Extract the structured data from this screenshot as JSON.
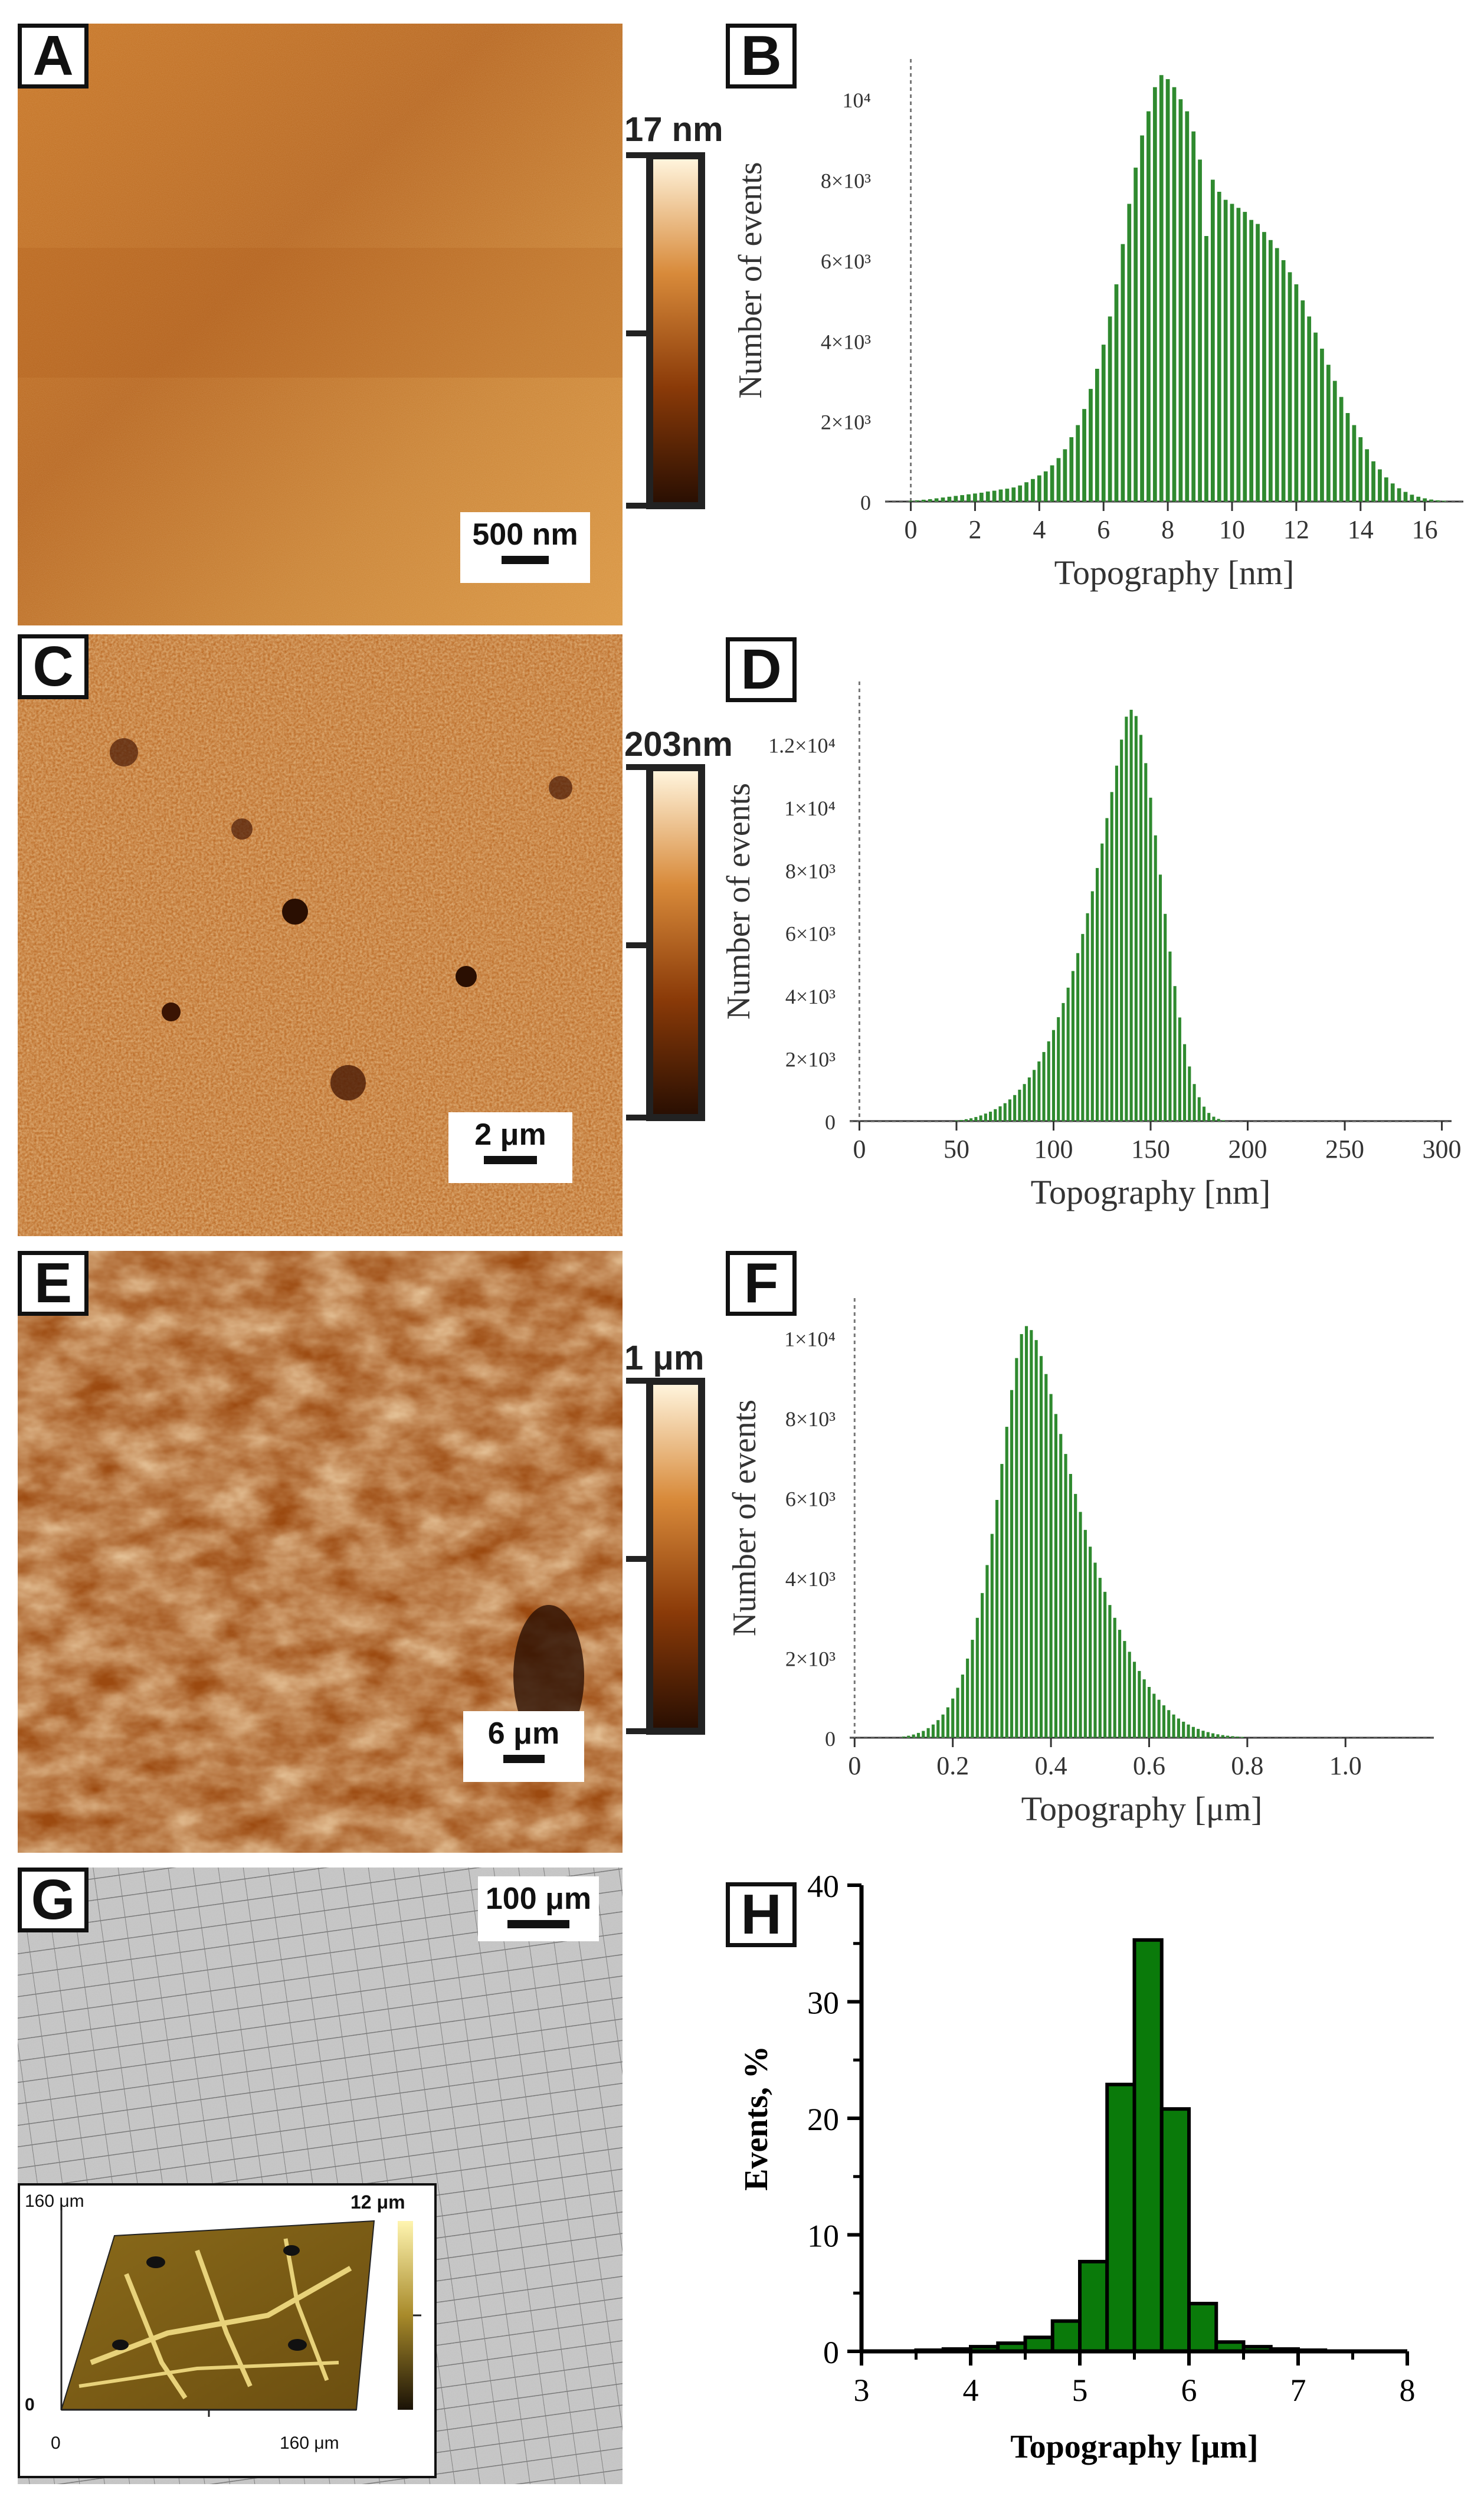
{
  "panels": {
    "A": {
      "letter": "A",
      "colorbar_max": "17 nm",
      "scale_bar": "500 nm"
    },
    "B": {
      "letter": "B"
    },
    "C": {
      "letter": "C",
      "colorbar_max": "203nm",
      "scale_bar": "2 μm"
    },
    "D": {
      "letter": "D"
    },
    "E": {
      "letter": "E",
      "colorbar_max": "1 μm",
      "scale_bar": "6 μm"
    },
    "F": {
      "letter": "F"
    },
    "G": {
      "letter": "G",
      "scale_bar": "100 μm",
      "inset": {
        "y_max": "160 μm",
        "y_min": "0",
        "x_min": "0",
        "x_max": "160 μm",
        "z_max": "12 μm"
      }
    },
    "H": {
      "letter": "H"
    }
  },
  "chart_data": [
    {
      "id": "B",
      "type": "bar",
      "xlabel": "Topography [nm]",
      "ylabel": "Number of events",
      "xlim": [
        -0.8,
        17.2
      ],
      "ylim": [
        0,
        11000
      ],
      "xticks": [
        "0",
        "2",
        "4",
        "6",
        "8",
        "10",
        "12",
        "14",
        "16"
      ],
      "yticks": [
        "0",
        "2×10³",
        "4×10³",
        "6×10³",
        "8×10³",
        "10⁴"
      ],
      "x_start": 0.0,
      "x_step": 0.2,
      "values": [
        20,
        30,
        45,
        60,
        80,
        100,
        120,
        140,
        160,
        180,
        200,
        220,
        250,
        270,
        300,
        320,
        350,
        400,
        480,
        560,
        650,
        750,
        900,
        1080,
        1300,
        1600,
        1900,
        2300,
        2800,
        3300,
        3900,
        4600,
        5400,
        6400,
        7400,
        8300,
        9100,
        9700,
        10300,
        10600,
        10500,
        10300,
        10000,
        9700,
        9200,
        8500,
        6600,
        8000,
        7700,
        7500,
        7400,
        7300,
        7200,
        7000,
        6900,
        6700,
        6500,
        6300,
        6000,
        5700,
        5400,
        5000,
        4600,
        4200,
        3800,
        3400,
        3000,
        2600,
        2200,
        1900,
        1600,
        1300,
        1000,
        800,
        600,
        450,
        330,
        240,
        170,
        120,
        80,
        50,
        30,
        20
      ]
    },
    {
      "id": "D",
      "type": "bar",
      "xlabel": "Topography [nm]",
      "ylabel": "Number of events",
      "xlim": [
        -5,
        305
      ],
      "ylim": [
        0,
        14000
      ],
      "xticks": [
        "0",
        "50",
        "100",
        "150",
        "200",
        "250",
        "300"
      ],
      "yticks": [
        "0",
        "2×10³",
        "4×10³",
        "6×10³",
        "8×10³",
        "1×10⁴",
        "1.2×10⁴"
      ],
      "x_start": 50,
      "x_step": 2.5,
      "values": [
        20,
        35,
        60,
        90,
        130,
        180,
        240,
        300,
        380,
        470,
        570,
        690,
        830,
        1000,
        1180,
        1390,
        1630,
        1900,
        2200,
        2540,
        2900,
        3310,
        3760,
        4250,
        4780,
        5350,
        5960,
        6620,
        7320,
        8060,
        8840,
        9650,
        10480,
        11320,
        12150,
        12880,
        13100,
        12900,
        12300,
        11400,
        10300,
        9100,
        7850,
        6600,
        5400,
        4300,
        3300,
        2450,
        1740,
        1180,
        760,
        460,
        260,
        140,
        70,
        30
      ]
    },
    {
      "id": "F",
      "type": "bar",
      "xlabel": "Topography [μm]",
      "ylabel": "Number of events",
      "xlim": [
        -0.01,
        1.18
      ],
      "ylim": [
        0,
        11000
      ],
      "xticks": [
        "0",
        "0.2",
        "0.4",
        "0.6",
        "0.8",
        "1.0"
      ],
      "yticks": [
        "0",
        "2×10³",
        "4×10³",
        "6×10³",
        "8×10³",
        "1×10⁴"
      ],
      "x_start": 0.1,
      "x_step": 0.01,
      "values": [
        30,
        50,
        80,
        120,
        170,
        240,
        330,
        440,
        580,
        760,
        980,
        1250,
        1580,
        1980,
        2450,
        3000,
        3620,
        4320,
        5100,
        5950,
        6850,
        7780,
        8700,
        9500,
        10100,
        10300,
        10200,
        9950,
        9550,
        9100,
        8600,
        8100,
        7600,
        7100,
        6600,
        6100,
        5650,
        5200,
        4780,
        4380,
        4000,
        3650,
        3320,
        3000,
        2700,
        2420,
        2150,
        1900,
        1670,
        1460,
        1270,
        1100,
        950,
        810,
        690,
        580,
        480,
        400,
        330,
        270,
        220,
        175,
        140,
        110,
        85,
        65,
        50,
        38,
        28,
        20
      ]
    },
    {
      "id": "H",
      "type": "bar",
      "xlabel": "Topography [μm]",
      "ylabel": "Events, %",
      "xlim": [
        3,
        8
      ],
      "ylim": [
        0,
        40
      ],
      "xticks": [
        "3",
        "4",
        "5",
        "6",
        "7",
        "8"
      ],
      "yticks": [
        "0",
        "10",
        "20",
        "30",
        "40"
      ],
      "bins": [
        [
          3.5,
          3.75
        ],
        [
          3.75,
          4.0
        ],
        [
          4.0,
          4.25
        ],
        [
          4.25,
          4.5
        ],
        [
          4.5,
          4.75
        ],
        [
          4.75,
          5.0
        ],
        [
          5.0,
          5.25
        ],
        [
          5.25,
          5.5
        ],
        [
          5.5,
          5.75
        ],
        [
          5.75,
          6.0
        ],
        [
          6.0,
          6.25
        ],
        [
          6.25,
          6.5
        ],
        [
          6.5,
          6.75
        ],
        [
          6.75,
          7.0
        ],
        [
          7.0,
          7.25
        ]
      ],
      "values": [
        0.1,
        0.2,
        0.4,
        0.7,
        1.2,
        2.6,
        7.7,
        22.9,
        35.3,
        20.8,
        4.1,
        0.8,
        0.4,
        0.2,
        0.1
      ]
    }
  ],
  "colors": {
    "bar_green": "#2f8a2f",
    "bar_green_dark": "#0a7a0a",
    "afm_dark": "#2a0f02",
    "afm_light": "#fff4dc"
  }
}
